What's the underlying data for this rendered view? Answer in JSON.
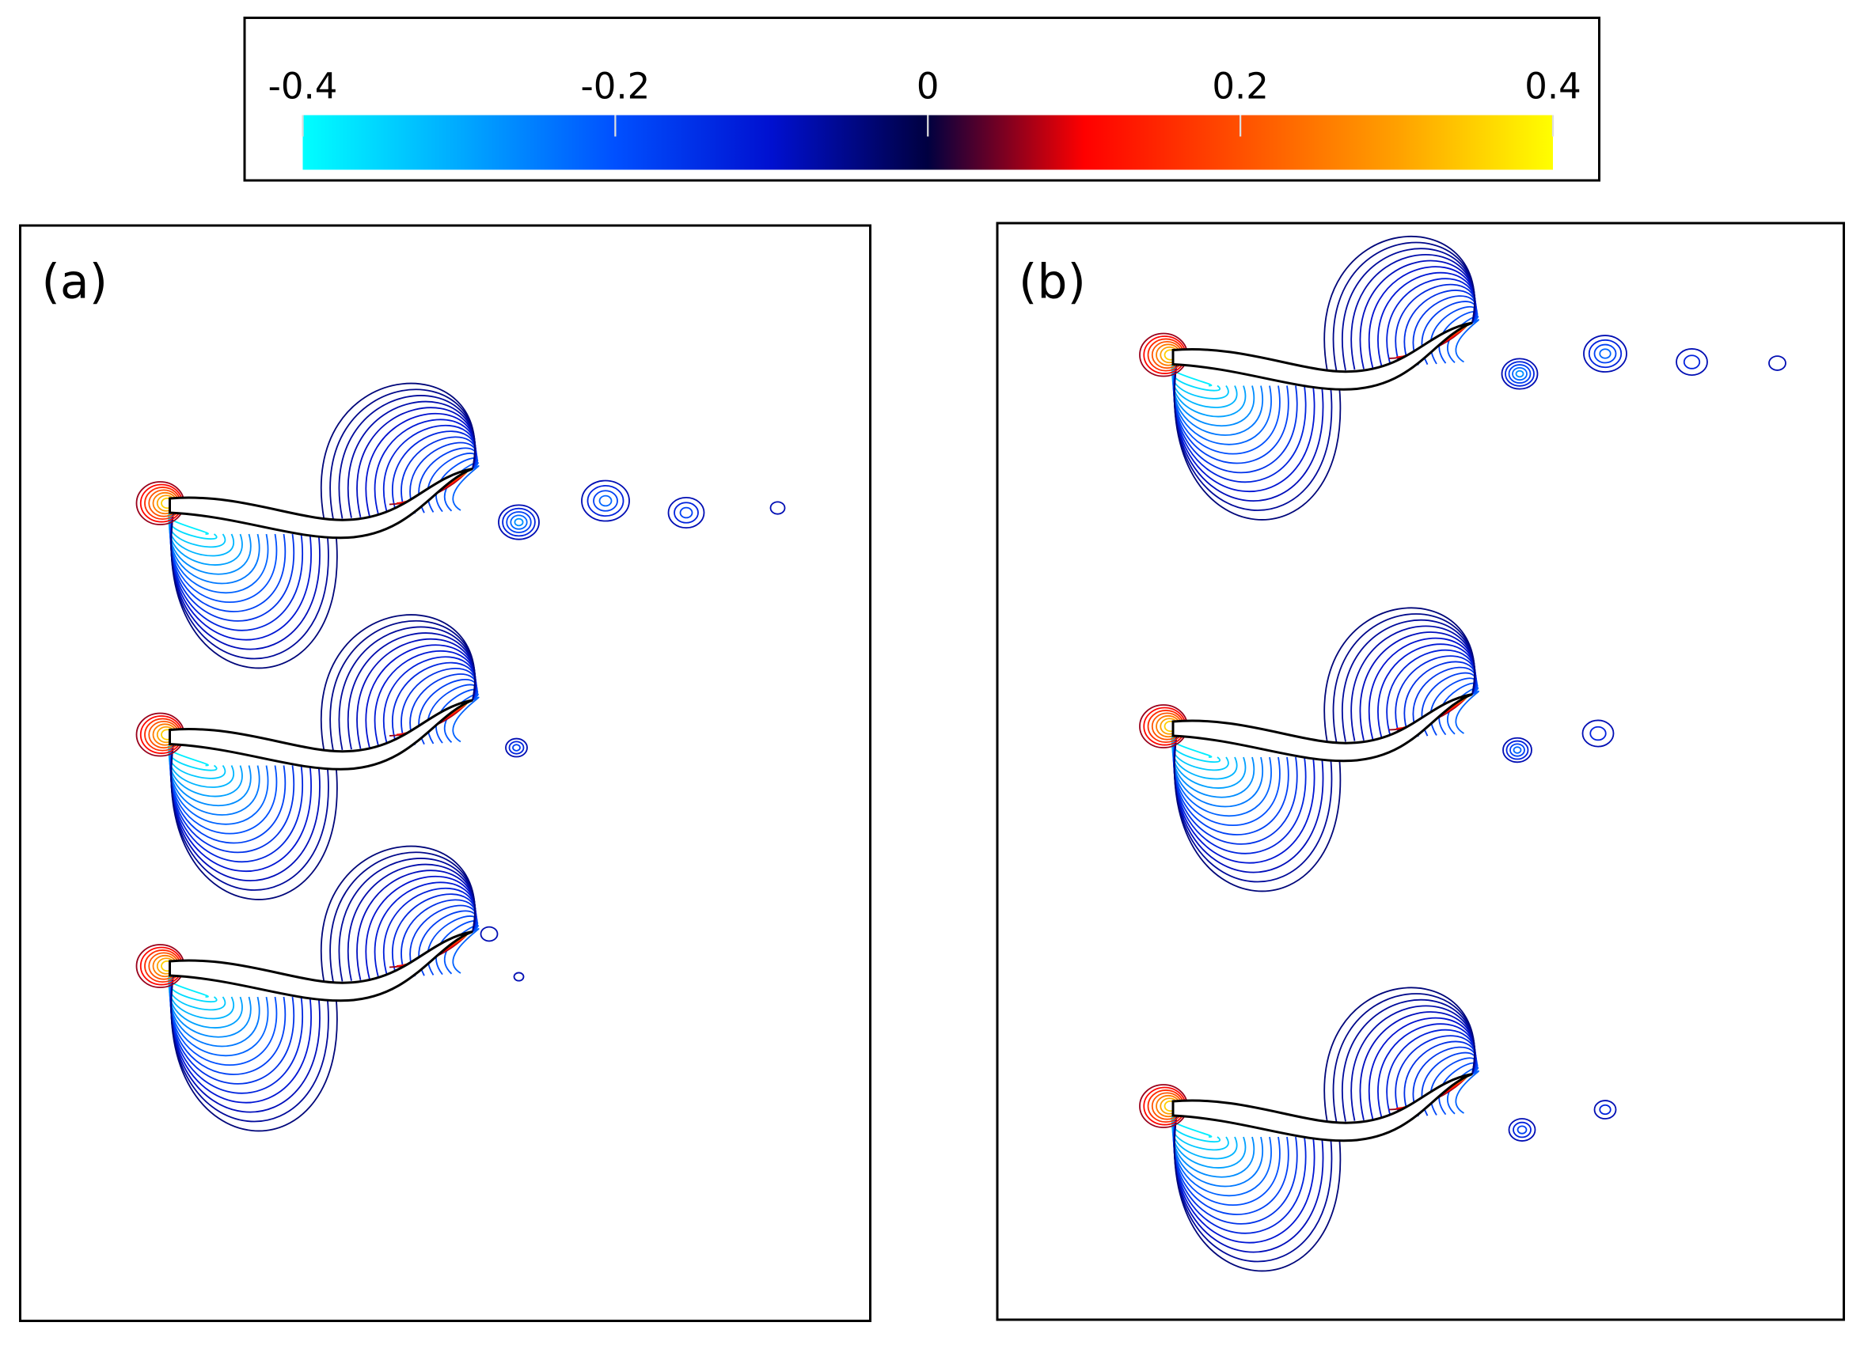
{
  "chart_data": {
    "type": "contour",
    "colorbar": {
      "clim": [
        -0.4,
        0.4
      ],
      "ticks": [
        -0.4,
        -0.2,
        0,
        0.2,
        0.4
      ],
      "colormap": [
        "#00ffff",
        "#00aaff",
        "#0050ff",
        "#0010d0",
        "#000040",
        "#ff0000",
        "#ff5000",
        "#ffa000",
        "#ffff00"
      ]
    },
    "panels": [
      {
        "label": "(a)"
      },
      {
        "label": "(b)"
      }
    ]
  }
}
